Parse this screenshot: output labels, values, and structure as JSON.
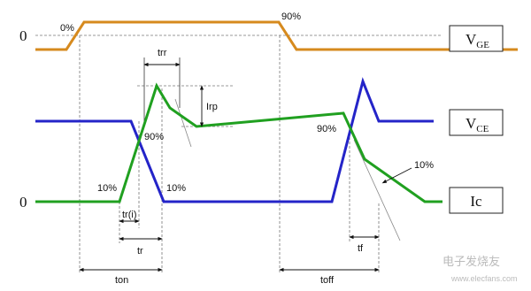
{
  "levels": {
    "upper_zero": "0",
    "lower_zero": "0"
  },
  "signals": {
    "vge": {
      "main": "V",
      "sub": "GE"
    },
    "vce": {
      "main": "V",
      "sub": "CE"
    },
    "ic": {
      "main": "Ic"
    }
  },
  "annotations": {
    "vge_0pct": "0%",
    "vge_90pct": "90%",
    "trr": "trr",
    "irp": "Irp",
    "on_90pct": "90%",
    "on_ic_10pct": "10%",
    "on_vce_10pct": "10%",
    "off_90pct": "90%",
    "off_10pct": "10%"
  },
  "intervals": {
    "tri": "tr(i)",
    "tr": "tr",
    "ton": "ton",
    "toff": "toff",
    "tf": "tf"
  },
  "watermark": {
    "brand": "电子发烧友",
    "url": "www.elecfans.com"
  }
}
